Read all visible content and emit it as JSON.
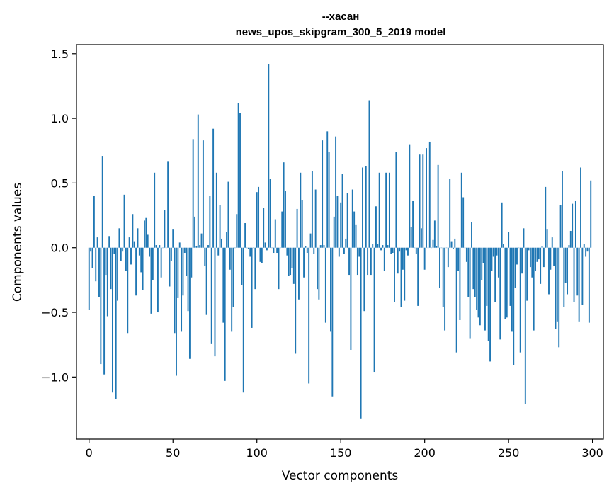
{
  "chart_data": {
    "type": "bar",
    "title_line1": "--хасан",
    "title_line2": "news_upos_skipgram_300_5_2019 model",
    "xlabel": "Vector components",
    "ylabel": "Components values",
    "xlim": [
      -7.5,
      306.5
    ],
    "ylim": [
      -1.48,
      1.57
    ],
    "xticks": [
      0,
      50,
      100,
      150,
      200,
      250,
      300
    ],
    "xtick_labels": [
      "0",
      "50",
      "100",
      "150",
      "200",
      "250",
      "300"
    ],
    "yticks": [
      -1.0,
      -0.5,
      0.0,
      0.5,
      1.0,
      1.5
    ],
    "ytick_labels": [
      "−1.0",
      "−0.5",
      "0.0",
      "0.5",
      "1.0",
      "1.5"
    ],
    "bar_color": "#1f77b4",
    "values": [
      -0.48,
      -0.03,
      -0.16,
      0.4,
      -0.26,
      0.08,
      -0.38,
      -0.9,
      0.71,
      -0.98,
      -0.21,
      -0.53,
      0.09,
      -0.32,
      -1.12,
      -0.05,
      -1.17,
      -0.41,
      0.15,
      -0.1,
      -0.03,
      0.41,
      -0.18,
      -0.66,
      0.08,
      -0.13,
      0.26,
      0.05,
      -0.37,
      0.15,
      -0.06,
      -0.19,
      -0.33,
      0.21,
      0.23,
      0.1,
      -0.07,
      -0.51,
      -0.25,
      0.58,
      0.02,
      -0.5,
      0.02,
      -0.23,
      0.0,
      0.29,
      0.0,
      0.67,
      -0.3,
      -0.1,
      0.14,
      -0.66,
      -0.99,
      -0.39,
      0.04,
      -0.65,
      -0.37,
      -0.04,
      -0.22,
      -0.49,
      -0.86,
      -0.23,
      0.84,
      0.24,
      0.01,
      1.03,
      0.02,
      0.11,
      0.83,
      -0.14,
      -0.52,
      0.02,
      0.4,
      -0.74,
      0.92,
      -0.84,
      0.58,
      -0.06,
      0.33,
      0.07,
      -0.58,
      -1.03,
      0.12,
      0.51,
      -0.17,
      -0.65,
      -0.46,
      0.0,
      0.26,
      1.12,
      1.04,
      -0.29,
      -1.12,
      0.19,
      0.0,
      -0.01,
      -0.07,
      -0.62,
      0.0,
      -0.32,
      0.43,
      0.47,
      -0.11,
      -0.12,
      0.31,
      0.04,
      -0.02,
      1.42,
      0.53,
      0.0,
      -0.04,
      0.22,
      -0.04,
      -0.32,
      0.0,
      0.28,
      0.66,
      0.44,
      -0.06,
      -0.22,
      -0.21,
      -0.16,
      -0.28,
      -0.82,
      0.3,
      -0.4,
      0.58,
      0.37,
      -0.23,
      0.01,
      -0.04,
      -1.05,
      0.11,
      0.59,
      -0.05,
      0.45,
      -0.32,
      -0.4,
      0.02,
      0.83,
      0.02,
      -0.58,
      0.9,
      0.74,
      -0.65,
      -1.15,
      0.24,
      0.86,
      0.4,
      -0.07,
      0.35,
      0.57,
      -0.05,
      0.07,
      0.42,
      -0.21,
      -0.79,
      0.45,
      0.28,
      0.18,
      -0.21,
      -0.07,
      -1.32,
      0.62,
      -0.49,
      0.63,
      -0.21,
      1.14,
      -0.21,
      0.03,
      -0.96,
      0.32,
      0.03,
      0.58,
      -0.02,
      0.02,
      -0.18,
      0.58,
      0.02,
      0.58,
      -0.05,
      -0.04,
      -0.42,
      0.74,
      -0.2,
      -0.03,
      -0.46,
      -0.17,
      -0.41,
      -0.02,
      -0.06,
      0.8,
      0.16,
      0.36,
      0.0,
      -0.05,
      -0.45,
      0.72,
      0.15,
      0.72,
      -0.17,
      0.77,
      0.0,
      0.82,
      0.0,
      0.06,
      0.21,
      0.01,
      0.64,
      -0.31,
      0.0,
      -0.46,
      -0.64,
      0.0,
      -0.15,
      0.53,
      0.05,
      -0.01,
      0.07,
      -0.81,
      -0.18,
      -0.56,
      0.58,
      0.39,
      0.0,
      -0.11,
      -0.38,
      -0.7,
      0.2,
      -0.32,
      -0.38,
      -0.48,
      -0.54,
      -0.6,
      -0.25,
      -0.12,
      -0.64,
      -0.45,
      -0.72,
      -0.88,
      -0.18,
      -0.07,
      -0.42,
      -0.06,
      -0.23,
      -0.71,
      0.35,
      0.03,
      -0.55,
      -0.54,
      0.12,
      -0.45,
      -0.65,
      -0.91,
      -0.31,
      -0.13,
      0.0,
      -0.81,
      -0.2,
      0.15,
      -1.21,
      -0.41,
      -0.02,
      -0.15,
      -0.23,
      -0.64,
      -0.18,
      -0.11,
      -0.09,
      -0.28,
      0.01,
      -0.15,
      0.47,
      0.14,
      -0.36,
      -0.17,
      0.08,
      -0.14,
      -0.63,
      -0.57,
      -0.77,
      0.33,
      0.59,
      -0.46,
      -0.27,
      -0.36,
      0.02,
      0.13,
      0.34,
      -0.42,
      0.36,
      -0.37,
      -0.57,
      0.62,
      -0.44,
      0.03,
      -0.07,
      -0.03,
      -0.58,
      0.52
    ]
  }
}
